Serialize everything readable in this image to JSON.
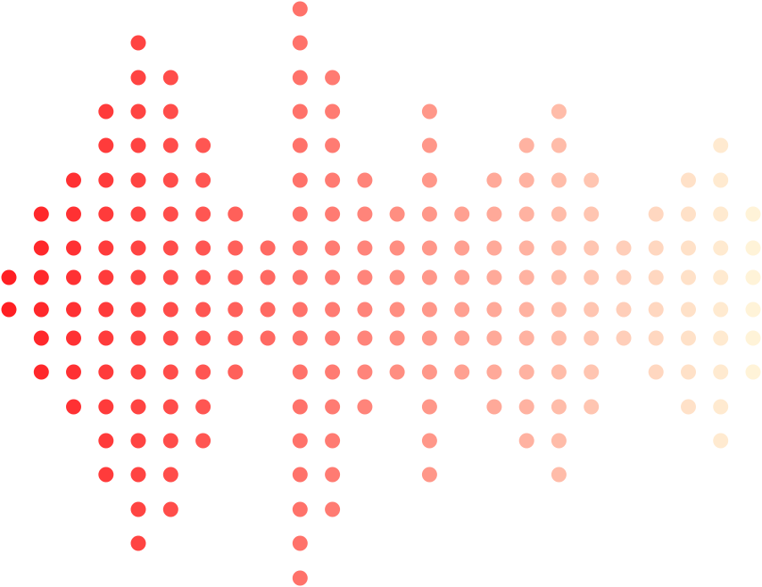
{
  "graphic": {
    "kind": "dotted sound wave",
    "color_start": "#ff1f23",
    "color_end": "#fff3d8",
    "columns": [
      {
        "from_row": 8,
        "to_row": 9
      },
      {
        "from_row": 6,
        "to_row": 11
      },
      {
        "from_row": 5,
        "to_row": 12
      },
      {
        "from_row": 3,
        "to_row": 14
      },
      {
        "from_row": 1,
        "to_row": 16
      },
      {
        "from_row": 2,
        "to_row": 15
      },
      {
        "from_row": 4,
        "to_row": 13
      },
      {
        "from_row": 6,
        "to_row": 11
      },
      {
        "from_row": 7,
        "to_row": 10
      },
      {
        "from_row": 0,
        "to_row": 17
      },
      {
        "from_row": 2,
        "to_row": 15
      },
      {
        "from_row": 5,
        "to_row": 12
      },
      {
        "from_row": 6,
        "to_row": 11
      },
      {
        "from_row": 3,
        "to_row": 14
      },
      {
        "from_row": 6,
        "to_row": 11
      },
      {
        "from_row": 5,
        "to_row": 12
      },
      {
        "from_row": 4,
        "to_row": 13
      },
      {
        "from_row": 3,
        "to_row": 14
      },
      {
        "from_row": 5,
        "to_row": 12
      },
      {
        "from_row": 7,
        "to_row": 10
      },
      {
        "from_row": 6,
        "to_row": 11
      },
      {
        "from_row": 5,
        "to_row": 12
      },
      {
        "from_row": 4,
        "to_row": 13
      },
      {
        "from_row": 6,
        "to_row": 11
      }
    ]
  }
}
